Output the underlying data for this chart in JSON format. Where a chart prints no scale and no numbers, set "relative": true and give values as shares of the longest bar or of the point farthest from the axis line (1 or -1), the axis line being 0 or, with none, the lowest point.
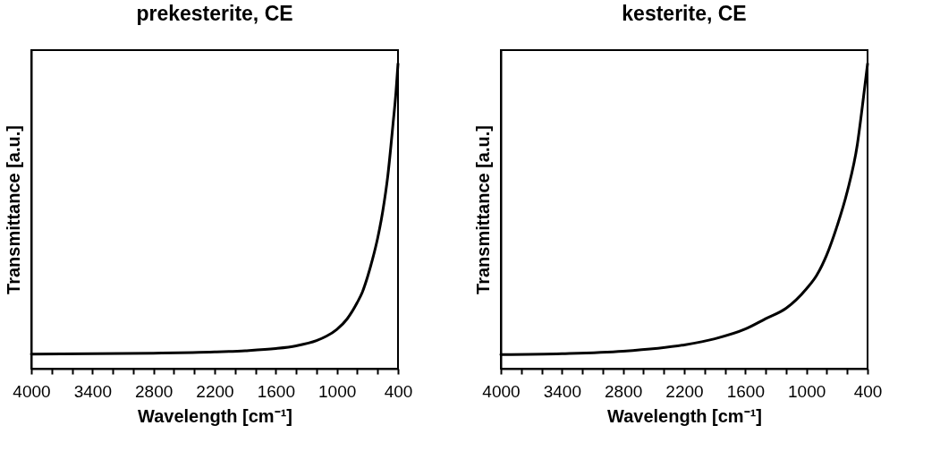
{
  "chart_data": [
    {
      "type": "line",
      "title": "prekesterite, CE",
      "xlabel": "Wavelength [cm⁻¹]",
      "ylabel": "Transmittance [a.u.]",
      "relative": true,
      "tick_labels": "x",
      "legend": false,
      "grid": false,
      "marker": "none",
      "line_style": "solid",
      "xlim": [
        4000,
        400
      ],
      "xticks": [
        4000,
        {
          "value": 3800,
          "label": null
        },
        {
          "value": 3600,
          "label": null
        },
        3400,
        {
          "value": 3200,
          "label": null
        },
        {
          "value": 3000,
          "label": null
        },
        2800,
        {
          "value": 2600,
          "label": null
        },
        {
          "value": 2400,
          "label": null
        },
        2200,
        {
          "value": 2000,
          "label": null
        },
        {
          "value": 1800,
          "label": null
        },
        1600,
        {
          "value": 1400,
          "label": null
        },
        {
          "value": 1200,
          "label": null
        },
        1000,
        {
          "value": 800,
          "label": null
        },
        {
          "value": 600,
          "label": null
        },
        400
      ],
      "x": [
        4000,
        3400,
        2800,
        2200,
        1900,
        1600,
        1400,
        1200,
        1100,
        1000,
        900,
        800,
        750,
        700,
        650,
        600,
        550,
        500,
        450,
        420,
        400
      ],
      "series": [
        {
          "color": "#000000",
          "values": [
            0.048,
            0.049,
            0.051,
            0.055,
            0.059,
            0.066,
            0.075,
            0.092,
            0.107,
            0.129,
            0.163,
            0.217,
            0.251,
            0.3,
            0.359,
            0.428,
            0.516,
            0.633,
            0.799,
            0.907,
            1
          ]
        }
      ]
    },
    {
      "type": "line",
      "title": "kesterite, CE",
      "xlabel": "Wavelength [cm⁻¹]",
      "ylabel": "Transmittance [a.u.]",
      "relative": true,
      "tick_labels": "x",
      "legend": false,
      "grid": false,
      "marker": "none",
      "line_style": "solid",
      "xlim": [
        4000,
        400
      ],
      "xticks": [
        4000,
        {
          "value": 3800,
          "label": null
        },
        {
          "value": 3600,
          "label": null
        },
        3400,
        {
          "value": 3200,
          "label": null
        },
        {
          "value": 3000,
          "label": null
        },
        2800,
        {
          "value": 2600,
          "label": null
        },
        {
          "value": 2400,
          "label": null
        },
        2200,
        {
          "value": 2000,
          "label": null
        },
        {
          "value": 1800,
          "label": null
        },
        1600,
        {
          "value": 1400,
          "label": null
        },
        {
          "value": 1200,
          "label": null
        },
        1000,
        {
          "value": 800,
          "label": null
        },
        {
          "value": 600,
          "label": null
        },
        400
      ],
      "x": [
        4000,
        3400,
        2800,
        2200,
        1900,
        1600,
        1400,
        1200,
        1000,
        900,
        800,
        700,
        600,
        500,
        450,
        400
      ],
      "series": [
        {
          "color": "#000000",
          "values": [
            0.046,
            0.049,
            0.057,
            0.078,
            0.098,
            0.13,
            0.164,
            0.198,
            0.262,
            0.306,
            0.374,
            0.467,
            0.58,
            0.736,
            0.863,
            1
          ]
        }
      ]
    }
  ]
}
